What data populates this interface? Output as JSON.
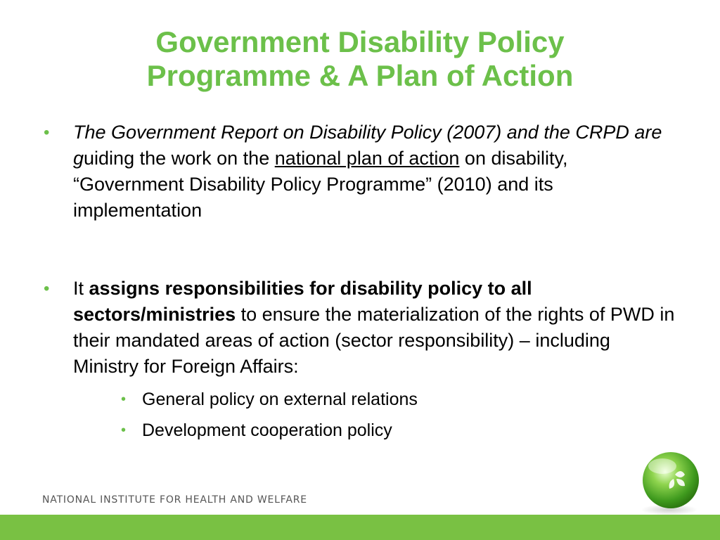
{
  "title": {
    "line1": "Government Disability Policy",
    "line2": "Programme & A Plan of Action"
  },
  "bullet1": {
    "italic": "The Government Report on Disability Policy (2007)  and the CRPD are g",
    "plain1": "uiding the work on the ",
    "underlined": "national plan of action",
    "plain2": " on disability,  “Government Disability Policy Programme” (2010) and its implementation"
  },
  "bullet2": {
    "lead": "It ",
    "bold": "assigns responsibilities for disability policy to all sectors/ministries",
    "rest": " to ensure the materialization of the rights of PWD in their mandated areas of action (sector responsibility) – including Ministry for Foreign Affairs:",
    "subitems": [
      {
        "label": "General policy on external relations"
      },
      {
        "label": "Development cooperation policy"
      }
    ]
  },
  "footer": {
    "org": "NATIONAL INSTITUTE FOR HEALTH AND WELFARE"
  },
  "colors": {
    "accent": "#6cc04a",
    "bar": "#79c143"
  },
  "icons": {
    "logo": "green-sphere-logo-icon",
    "bullet": "bullet-dot-icon"
  }
}
